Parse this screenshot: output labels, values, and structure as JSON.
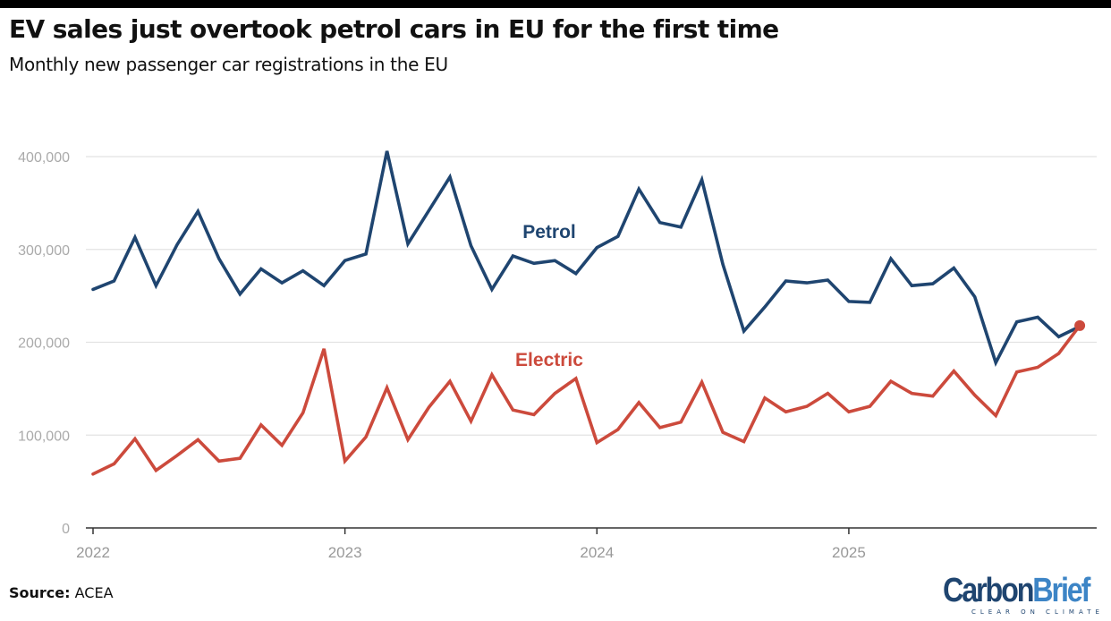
{
  "header": {
    "title": "EV sales just overtook petrol cars in EU for the first time",
    "subtitle": "Monthly new passenger car registrations in the EU"
  },
  "footer": {
    "source_label": "Source:",
    "source_value": "ACEA",
    "logo_part1": "Carbon",
    "logo_part2": "Brief",
    "logo_tagline": "CLEAR ON CLIMATE"
  },
  "chart_data": {
    "type": "line",
    "title": "EV sales just overtook petrol cars in EU for the first time",
    "subtitle": "Monthly new passenger car registrations in the EU",
    "xlabel": "",
    "ylabel": "",
    "x_start": "2022-01",
    "x_frequency": "monthly",
    "x_ticks": [
      "2022",
      "2023",
      "2024",
      "2025"
    ],
    "ylim": [
      0,
      400000
    ],
    "y_ticks": [
      0,
      100000,
      200000,
      300000,
      400000
    ],
    "y_tick_labels": [
      "0",
      "100,000",
      "200,000",
      "300,000",
      "400,000"
    ],
    "grid": "horizontal",
    "legend": "inline labels",
    "series": [
      {
        "name": "Petrol",
        "color": "#1f4570",
        "values": [
          257000,
          266000,
          313000,
          261000,
          305000,
          341000,
          290000,
          252000,
          279000,
          264000,
          277000,
          261000,
          288000,
          295000,
          406000,
          306000,
          342000,
          378000,
          304000,
          257000,
          293000,
          285000,
          288000,
          274000,
          302000,
          314000,
          365000,
          329000,
          324000,
          375000,
          284000,
          212000,
          238000,
          266000,
          264000,
          267000,
          244000,
          243000,
          290000,
          261000,
          263000,
          280000,
          249000,
          178000,
          222000,
          227000,
          206000,
          217000
        ]
      },
      {
        "name": "Electric",
        "color": "#cc4a3c",
        "end_marker": true,
        "values": [
          58000,
          69000,
          96000,
          62000,
          78000,
          95000,
          72000,
          75000,
          111000,
          89000,
          124000,
          193000,
          72000,
          98000,
          151000,
          95000,
          130000,
          158000,
          115000,
          165000,
          127000,
          122000,
          145000,
          161000,
          92000,
          106000,
          135000,
          108000,
          114000,
          157000,
          103000,
          93000,
          140000,
          125000,
          131000,
          145000,
          125000,
          131000,
          158000,
          145000,
          142000,
          169000,
          143000,
          121000,
          168000,
          173000,
          188000,
          218000
        ]
      }
    ]
  }
}
